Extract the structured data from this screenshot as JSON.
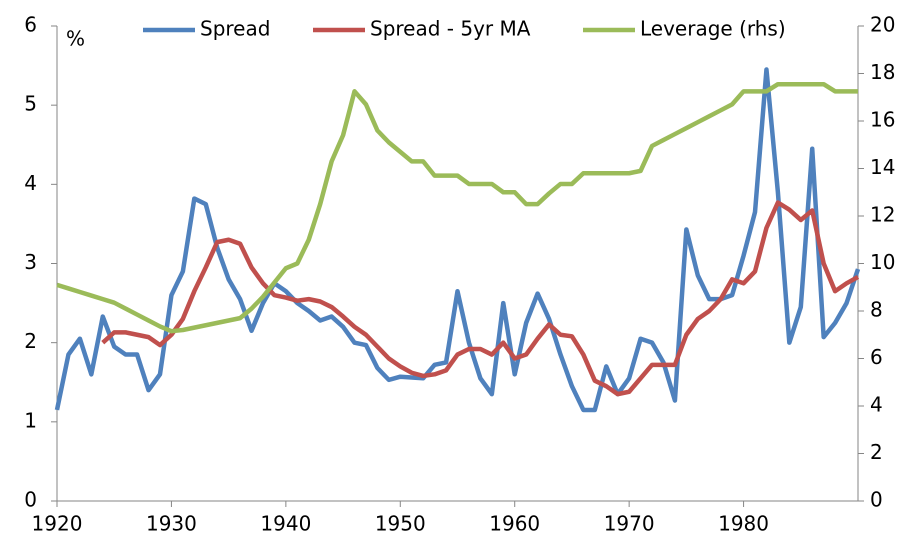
{
  "chart_data": {
    "type": "line",
    "y_unit_label": "%",
    "x": [
      1920,
      1921,
      1922,
      1923,
      1924,
      1925,
      1926,
      1927,
      1928,
      1929,
      1930,
      1931,
      1932,
      1933,
      1934,
      1935,
      1936,
      1937,
      1938,
      1939,
      1940,
      1941,
      1942,
      1943,
      1944,
      1945,
      1946,
      1947,
      1948,
      1949,
      1950,
      1951,
      1952,
      1953,
      1954,
      1955,
      1956,
      1957,
      1958,
      1959,
      1960,
      1961,
      1962,
      1963,
      1964,
      1965,
      1966,
      1967,
      1968,
      1969,
      1970,
      1971,
      1972,
      1973,
      1974,
      1975,
      1976,
      1977,
      1978,
      1979,
      1980,
      1981,
      1982,
      1983,
      1984,
      1985,
      1986,
      1987,
      1988,
      1989,
      1990
    ],
    "series": [
      {
        "name": "Spread",
        "color": "#4f81bd",
        "values": [
          1.15,
          1.85,
          2.05,
          1.6,
          2.33,
          1.95,
          1.85,
          1.85,
          1.4,
          1.6,
          2.6,
          2.9,
          3.82,
          3.75,
          3.2,
          2.8,
          2.55,
          2.15,
          2.5,
          2.75,
          2.65,
          2.5,
          2.4,
          2.28,
          2.33,
          2.2,
          2.0,
          1.97,
          1.68,
          1.53,
          1.57,
          1.56,
          1.55,
          1.72,
          1.75,
          2.65,
          2.0,
          1.55,
          1.35,
          2.5,
          1.6,
          2.25,
          2.62,
          2.3,
          1.85,
          1.45,
          1.15,
          1.15,
          1.7,
          1.35,
          1.55,
          2.05,
          2.0,
          1.75,
          1.27,
          3.43,
          2.85,
          2.55,
          2.55,
          2.6,
          3.1,
          3.65,
          5.45,
          3.9,
          2.0,
          2.45,
          4.45,
          2.07,
          2.25,
          2.5,
          2.93
        ]
      },
      {
        "name": "Spread - 5yr MA",
        "color": "#c0504d",
        "values": [
          null,
          null,
          null,
          null,
          2.0,
          2.13,
          2.13,
          2.1,
          2.07,
          1.97,
          2.1,
          2.3,
          2.65,
          2.95,
          3.27,
          3.3,
          3.25,
          2.95,
          2.75,
          2.6,
          2.57,
          2.53,
          2.55,
          2.52,
          2.45,
          2.33,
          2.2,
          2.1,
          1.95,
          1.8,
          1.7,
          1.62,
          1.58,
          1.6,
          1.65,
          1.85,
          1.92,
          1.92,
          1.85,
          2.0,
          1.8,
          1.85,
          2.05,
          2.23,
          2.1,
          2.08,
          1.85,
          1.52,
          1.45,
          1.35,
          1.38,
          1.55,
          1.72,
          1.72,
          1.72,
          2.1,
          2.3,
          2.4,
          2.55,
          2.8,
          2.75,
          2.9,
          3.45,
          3.77,
          3.68,
          3.55,
          3.67,
          3.0,
          2.65,
          2.75,
          2.83
        ]
      },
      {
        "name": "Leverage (rhs)",
        "color": "#9bbb59",
        "axis": "y2",
        "values": [
          9.1,
          8.95,
          8.8,
          8.65,
          8.5,
          8.35,
          8.1,
          7.85,
          7.6,
          7.35,
          7.15,
          7.2,
          7.3,
          7.4,
          7.5,
          7.6,
          7.7,
          8.1,
          8.6,
          9.2,
          9.8,
          10.0,
          11.0,
          12.5,
          14.3,
          15.4,
          17.25,
          16.7,
          15.6,
          15.1,
          14.7,
          14.3,
          14.3,
          13.7,
          13.7,
          13.7,
          13.35,
          13.35,
          13.35,
          13.0,
          13.0,
          12.5,
          12.5,
          12.95,
          13.35,
          13.35,
          13.8,
          13.8,
          13.8,
          13.8,
          13.8,
          13.9,
          14.95,
          15.2,
          15.45,
          15.7,
          15.95,
          16.2,
          16.45,
          16.7,
          17.25,
          17.25,
          17.25,
          17.55,
          17.55,
          17.55,
          17.55,
          17.55,
          17.25,
          17.25,
          17.25
        ]
      }
    ],
    "xlim": [
      1920,
      1990
    ],
    "xticks": [
      1920,
      1930,
      1940,
      1950,
      1960,
      1970,
      1980
    ],
    "ylim": [
      0,
      6
    ],
    "yticks": [
      0,
      1,
      2,
      3,
      4,
      5,
      6
    ],
    "y2lim": [
      0,
      20
    ],
    "y2ticks": [
      0,
      2,
      4,
      6,
      8,
      10,
      12,
      14,
      16,
      18,
      20
    ],
    "grid": false,
    "legend": "top"
  }
}
